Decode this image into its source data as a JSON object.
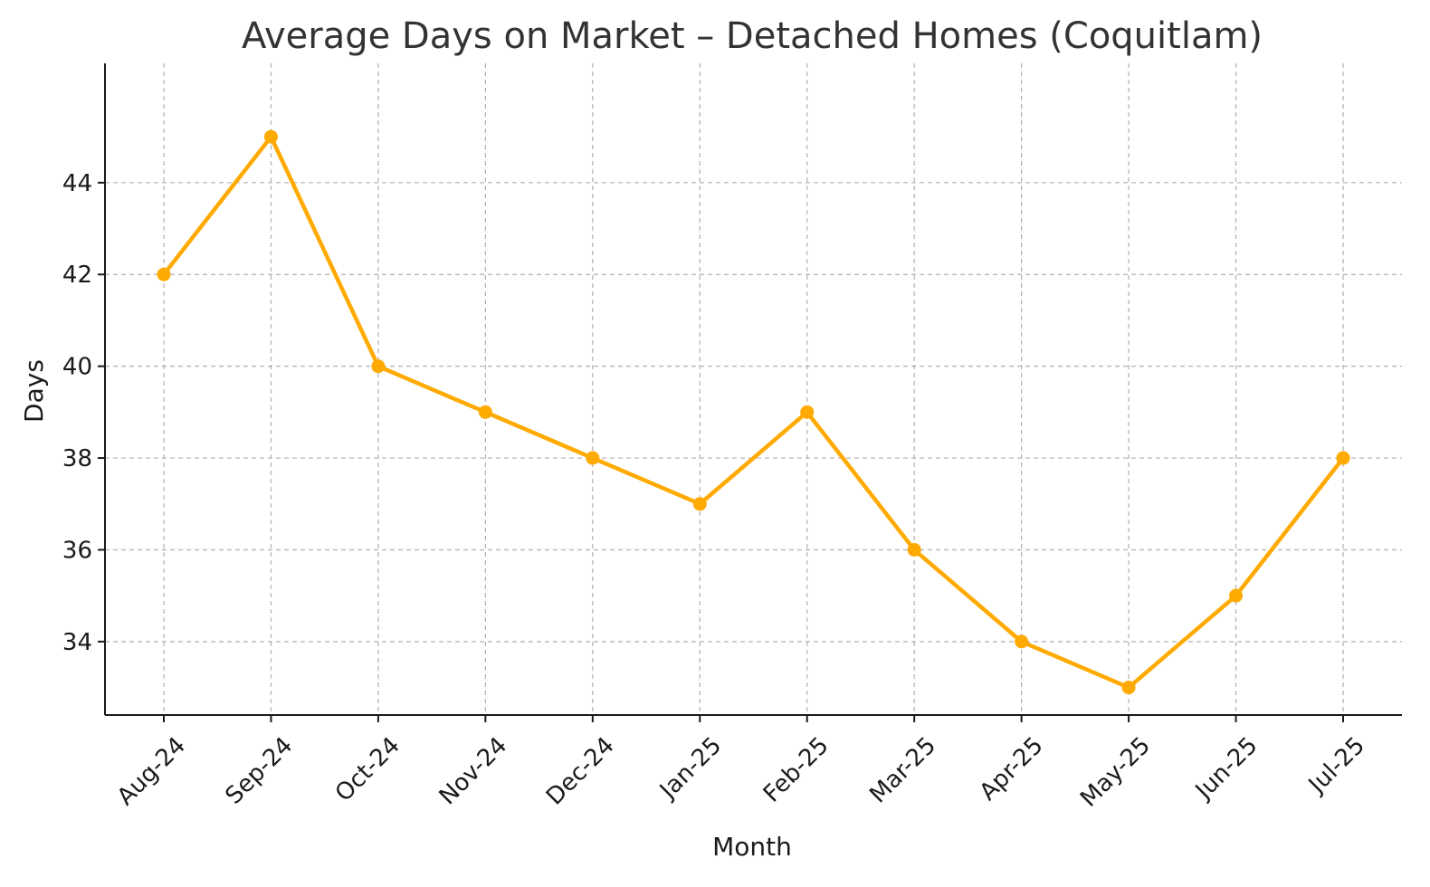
{
  "chart_data": {
    "type": "line",
    "title": "Average Days on Market – Detached Homes (Coquitlam)",
    "xlabel": "Month",
    "ylabel": "Days",
    "categories": [
      "Aug-24",
      "Sep-24",
      "Oct-24",
      "Nov-24",
      "Dec-24",
      "Jan-25",
      "Feb-25",
      "Mar-25",
      "Apr-25",
      "May-25",
      "Jun-25",
      "Jul-25"
    ],
    "series": [
      {
        "values": [
          42,
          45,
          40,
          39,
          38,
          37,
          39,
          36,
          34,
          33,
          35,
          38
        ]
      }
    ],
    "ylim": [
      32.4,
      46.6
    ],
    "yticks": [
      34,
      36,
      38,
      40,
      42,
      44
    ],
    "grid": true,
    "line_color": "#FFAA00",
    "legend": "none"
  }
}
